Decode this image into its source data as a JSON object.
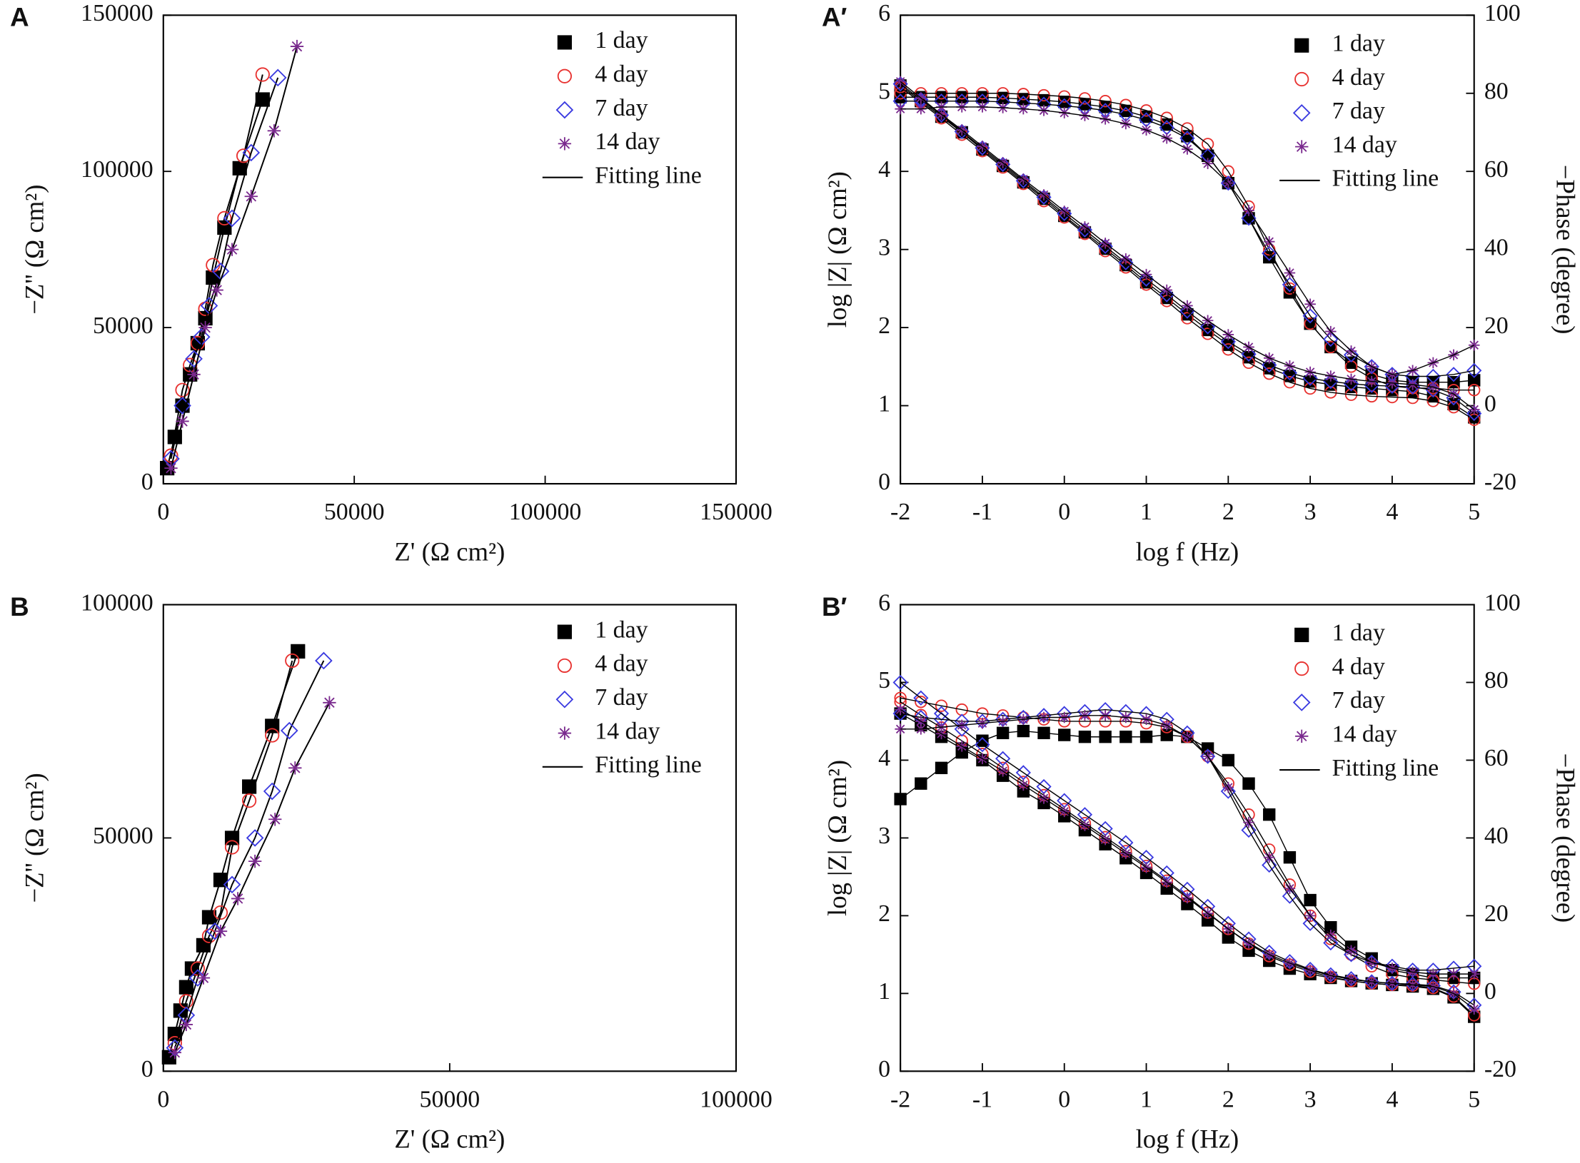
{
  "chart_data": [
    {
      "type": "scatter",
      "panel_label": "A",
      "xlabel": "Z' (Ω cm²)",
      "ylabel": "−Z'' (Ω cm²)",
      "xlim": [
        0,
        150000
      ],
      "ylim": [
        0,
        150000
      ],
      "xticks": [
        0,
        50000,
        100000,
        150000
      ],
      "yticks": [
        0,
        50000,
        100000,
        150000
      ],
      "fit_label": "Fitting line",
      "series": [
        {
          "name": "1 day",
          "color": "#000000",
          "marker": "square",
          "x": [
            1000,
            3000,
            5000,
            7000,
            9000,
            11000,
            13000,
            16000,
            20000,
            26000
          ],
          "values": [
            5000,
            15000,
            25000,
            35000,
            45000,
            53000,
            66000,
            82000,
            101000,
            123000
          ]
        },
        {
          "name": "4 day",
          "color": "#e8312f",
          "marker": "circle",
          "x": [
            2000,
            5000,
            7000,
            9000,
            11000,
            13000,
            16000,
            21000,
            26000
          ],
          "values": [
            9000,
            30000,
            38000,
            45000,
            56000,
            70000,
            85000,
            105000,
            131000
          ]
        },
        {
          "name": "7 day",
          "color": "#3a3ae0",
          "marker": "diamond",
          "x": [
            2000,
            5000,
            8000,
            10000,
            12000,
            15000,
            18000,
            23000,
            30000
          ],
          "values": [
            8000,
            25000,
            40000,
            47000,
            57000,
            68000,
            85000,
            106000,
            130000
          ]
        },
        {
          "name": "14 day",
          "color": "#7a2a8e",
          "marker": "star",
          "x": [
            2000,
            5000,
            8000,
            11000,
            14000,
            18000,
            23000,
            29000,
            35000
          ],
          "values": [
            5000,
            20000,
            35000,
            50000,
            62000,
            75000,
            92000,
            113000,
            140000
          ]
        }
      ]
    },
    {
      "type": "line",
      "panel_label": "A′",
      "xlabel": "log f (Hz)",
      "ylabel": "log |Z| (Ω cm²)",
      "y2label": "−Phase (degree)",
      "xlim": [
        -2,
        5
      ],
      "ylim": [
        0,
        6
      ],
      "y2lim": [
        -20,
        100
      ],
      "xticks": [
        -2,
        -1,
        0,
        1,
        2,
        3,
        4,
        5
      ],
      "yticks": [
        0,
        1,
        2,
        3,
        4,
        5,
        6
      ],
      "y2ticks": [
        -20,
        0,
        20,
        40,
        60,
        80,
        100
      ],
      "fit_label": "Fitting line",
      "x": [
        -2,
        -1.75,
        -1.5,
        -1.25,
        -1,
        -0.75,
        -0.5,
        -0.25,
        0,
        0.25,
        0.5,
        0.75,
        1,
        1.25,
        1.5,
        1.75,
        2,
        2.25,
        2.5,
        2.75,
        3,
        3.25,
        3.5,
        3.75,
        4,
        4.25,
        4.5,
        4.75,
        5
      ],
      "series": [
        {
          "name": "1 day",
          "color": "#000000",
          "marker": "square",
          "values": [
            5.1,
            4.9,
            4.7,
            4.5,
            4.28,
            4.07,
            3.86,
            3.65,
            3.43,
            3.22,
            3.01,
            2.8,
            2.58,
            2.38,
            2.17,
            1.97,
            1.78,
            1.62,
            1.48,
            1.38,
            1.31,
            1.27,
            1.24,
            1.22,
            1.2,
            1.18,
            1.12,
            1.02,
            0.85
          ],
          "phase": [
            79,
            79,
            79,
            79,
            79,
            78.8,
            78.5,
            78.2,
            77.8,
            77.2,
            76.5,
            75.5,
            74,
            72,
            69,
            64,
            57,
            48,
            38,
            29,
            21,
            15,
            11,
            8,
            6.5,
            6,
            6,
            6,
            6.5
          ]
        },
        {
          "name": "4 day",
          "color": "#e8312f",
          "marker": "circle",
          "values": [
            5.08,
            4.88,
            4.68,
            4.47,
            4.26,
            4.05,
            3.84,
            3.62,
            3.41,
            3.2,
            2.98,
            2.77,
            2.55,
            2.34,
            2.12,
            1.92,
            1.72,
            1.55,
            1.41,
            1.3,
            1.22,
            1.17,
            1.14,
            1.12,
            1.11,
            1.1,
            1.06,
            0.98,
            0.82
          ],
          "phase": [
            80,
            80,
            80,
            80,
            80,
            80,
            79.8,
            79.5,
            79.2,
            78.7,
            78,
            77,
            75.6,
            73.7,
            71,
            67,
            60,
            51,
            40,
            30,
            21,
            15,
            10,
            7,
            5,
            4.5,
            4.5,
            4,
            4
          ]
        },
        {
          "name": "7 day",
          "color": "#3a3ae0",
          "marker": "diamond",
          "values": [
            5.12,
            4.92,
            4.72,
            4.51,
            4.3,
            4.09,
            3.88,
            3.67,
            3.46,
            3.25,
            3.04,
            2.83,
            2.62,
            2.42,
            2.21,
            2.01,
            1.82,
            1.66,
            1.52,
            1.42,
            1.35,
            1.31,
            1.28,
            1.26,
            1.25,
            1.24,
            1.2,
            1.1,
            0.9
          ],
          "phase": [
            78,
            78,
            78,
            78,
            78,
            77.8,
            77.5,
            77.2,
            76.8,
            76.3,
            75.6,
            74.6,
            73.2,
            71.2,
            68.5,
            64,
            57,
            48,
            39,
            31,
            23,
            17,
            13,
            10,
            8,
            7.5,
            7.5,
            8,
            9
          ]
        },
        {
          "name": "14 day",
          "color": "#7a2a8e",
          "marker": "star",
          "values": [
            5.15,
            4.94,
            4.73,
            4.53,
            4.32,
            4.11,
            3.9,
            3.7,
            3.49,
            3.29,
            3.08,
            2.88,
            2.68,
            2.48,
            2.28,
            2.09,
            1.91,
            1.75,
            1.61,
            1.51,
            1.43,
            1.38,
            1.34,
            1.31,
            1.29,
            1.27,
            1.24,
            1.15,
            0.95
          ],
          "phase": [
            76,
            76,
            76.5,
            76.5,
            76.5,
            76.3,
            76,
            75.6,
            75,
            74.3,
            73.4,
            72.2,
            70.6,
            68.5,
            65.7,
            62,
            57,
            50,
            42,
            34,
            26,
            19,
            14,
            10,
            8,
            9,
            11,
            13,
            15.5
          ]
        }
      ]
    },
    {
      "type": "scatter",
      "panel_label": "B",
      "xlabel": "Z' (Ω cm²)",
      "ylabel": "−Z'' (Ω cm²)",
      "xlim": [
        0,
        100000
      ],
      "ylim": [
        0,
        100000
      ],
      "xticks": [
        0,
        50000,
        100000
      ],
      "yticks": [
        0,
        50000,
        100000
      ],
      "fit_label": "Fitting line",
      "series": [
        {
          "name": "1 day",
          "color": "#000000",
          "marker": "square",
          "x": [
            1000,
            2000,
            3000,
            4000,
            5000,
            7000,
            8000,
            10000,
            12000,
            15000,
            19000,
            23500
          ],
          "values": [
            3000,
            8000,
            13000,
            18000,
            22000,
            27000,
            33000,
            41000,
            50000,
            61000,
            74000,
            90000
          ]
        },
        {
          "name": "4 day",
          "color": "#e8312f",
          "marker": "circle",
          "x": [
            2000,
            4000,
            6000,
            8000,
            10000,
            12000,
            15000,
            19000,
            22500
          ],
          "values": [
            6000,
            15000,
            22000,
            29000,
            34000,
            48000,
            58000,
            72000,
            88000
          ]
        },
        {
          "name": "7 day",
          "color": "#3a3ae0",
          "marker": "diamond",
          "x": [
            2000,
            4000,
            6000,
            9000,
            12000,
            16000,
            19000,
            22000,
            28000
          ],
          "values": [
            5000,
            12000,
            20000,
            30000,
            40000,
            50000,
            60000,
            73000,
            88000
          ]
        },
        {
          "name": "14 day",
          "color": "#7a2a8e",
          "marker": "star",
          "x": [
            2000,
            4000,
            7000,
            10000,
            13000,
            16000,
            19500,
            23000,
            29000
          ],
          "values": [
            4000,
            10000,
            20000,
            30000,
            37000,
            45000,
            54000,
            65000,
            79000
          ]
        }
      ]
    },
    {
      "type": "line",
      "panel_label": "B′",
      "xlabel": "log f (Hz)",
      "ylabel": "log |Z| (Ω cm²)",
      "y2label": "−Phase (degree)",
      "xlim": [
        -2,
        5
      ],
      "ylim": [
        0,
        6
      ],
      "y2lim": [
        -20,
        100
      ],
      "xticks": [
        -2,
        -1,
        0,
        1,
        2,
        3,
        4,
        5
      ],
      "yticks": [
        0,
        1,
        2,
        3,
        4,
        5,
        6
      ],
      "y2ticks": [
        -20,
        0,
        20,
        40,
        60,
        80,
        100
      ],
      "fit_label": "Fitting line",
      "x": [
        -2,
        -1.75,
        -1.5,
        -1.25,
        -1,
        -0.75,
        -0.5,
        -0.25,
        0,
        0.25,
        0.5,
        0.75,
        1,
        1.25,
        1.5,
        1.75,
        2,
        2.25,
        2.5,
        2.75,
        3,
        3.25,
        3.5,
        3.75,
        4,
        4.25,
        4.5,
        4.75,
        5
      ],
      "series": [
        {
          "name": "1 day",
          "color": "#000000",
          "marker": "square",
          "values": [
            4.6,
            4.45,
            4.3,
            4.15,
            4.0,
            3.8,
            3.6,
            3.45,
            3.28,
            3.1,
            2.92,
            2.74,
            2.55,
            2.35,
            2.15,
            1.94,
            1.72,
            1.55,
            1.42,
            1.32,
            1.25,
            1.2,
            1.16,
            1.13,
            1.11,
            1.09,
            1.06,
            0.95,
            0.7
          ],
          "phase": [
            50,
            54,
            58,
            62,
            65,
            67,
            67.5,
            67,
            66.5,
            66,
            66,
            66,
            66,
            66.5,
            66,
            63,
            60,
            54,
            46,
            35,
            24,
            17,
            12,
            9,
            6,
            5,
            4,
            4,
            4
          ]
        },
        {
          "name": "4 day",
          "color": "#e8312f",
          "marker": "circle",
          "values": [
            4.75,
            4.58,
            4.42,
            4.25,
            4.08,
            3.9,
            3.72,
            3.55,
            3.37,
            3.19,
            3.01,
            2.83,
            2.64,
            2.45,
            2.25,
            2.04,
            1.83,
            1.64,
            1.48,
            1.37,
            1.28,
            1.21,
            1.16,
            1.13,
            1.11,
            1.1,
            1.07,
            0.96,
            0.72
          ],
          "phase": [
            76,
            75,
            74,
            73,
            72,
            71.5,
            71,
            70.5,
            70,
            70,
            70,
            70,
            69.5,
            68.5,
            66,
            61,
            54,
            46,
            37,
            28,
            20,
            14,
            10,
            7,
            5,
            4,
            3.5,
            3,
            2.5
          ]
        },
        {
          "name": "7 day",
          "color": "#3a3ae0",
          "marker": "diamond",
          "values": [
            5.0,
            4.8,
            4.6,
            4.4,
            4.2,
            4.02,
            3.84,
            3.66,
            3.48,
            3.3,
            3.12,
            2.94,
            2.75,
            2.55,
            2.34,
            2.12,
            1.9,
            1.7,
            1.53,
            1.41,
            1.31,
            1.24,
            1.19,
            1.15,
            1.13,
            1.12,
            1.1,
            1.02,
            0.85
          ],
          "phase": [
            72,
            71,
            70.5,
            70,
            70,
            70.5,
            71,
            71.5,
            72,
            72.5,
            73,
            72.5,
            72,
            70.5,
            67,
            61,
            52,
            42,
            33,
            25,
            18,
            13,
            10,
            8,
            7,
            6,
            6,
            6.5,
            7
          ]
        },
        {
          "name": "14 day",
          "color": "#7a2a8e",
          "marker": "star",
          "values": [
            4.65,
            4.5,
            4.34,
            4.18,
            4.02,
            3.86,
            3.68,
            3.51,
            3.34,
            3.16,
            2.98,
            2.8,
            2.62,
            2.43,
            2.23,
            2.03,
            1.83,
            1.65,
            1.5,
            1.39,
            1.3,
            1.23,
            1.18,
            1.15,
            1.13,
            1.11,
            1.09,
            1.0,
            0.8
          ],
          "phase": [
            68,
            68,
            68.5,
            69,
            69.5,
            70,
            70.5,
            71,
            71,
            71.5,
            71.5,
            71,
            70.5,
            69,
            66,
            61,
            53,
            44,
            35,
            27,
            20,
            15,
            11,
            8,
            6.5,
            5.5,
            5,
            5,
            5
          ]
        }
      ]
    }
  ]
}
